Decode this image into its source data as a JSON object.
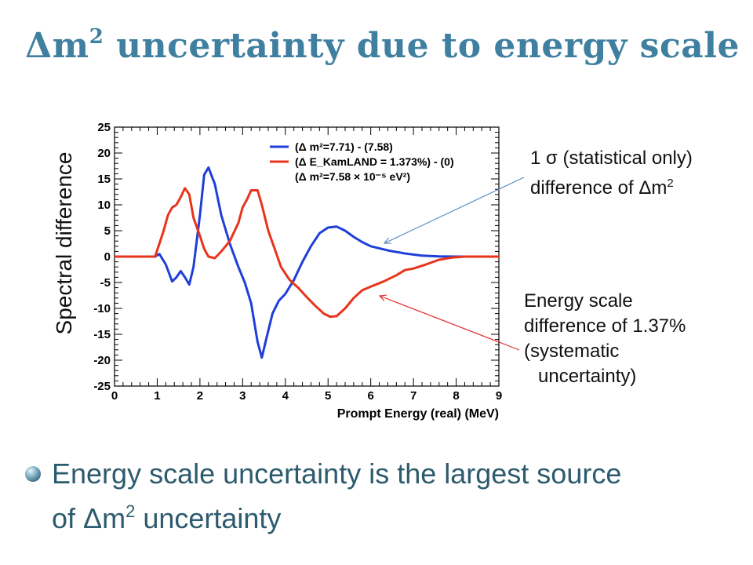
{
  "slide": {
    "title_main": "Δm",
    "title_sup": "2",
    "title_rest": " uncertainty due to energy scale",
    "ylabel": "Spectral difference"
  },
  "annotations": {
    "blue_note": {
      "line1": "1 σ (statistical only)",
      "line2_text": "difference of Δm",
      "line2_sup": "2",
      "color": "#5a8fc8"
    },
    "red_note": {
      "line1": "Energy scale",
      "line2": "difference of 1.37%",
      "line3": "(systematic",
      "line4": "uncertainty)",
      "color": "#e03030"
    }
  },
  "bullet": {
    "text_line1": "Energy scale uncertainty is the largest source",
    "text_line2_prefix": "of Δm",
    "text_line2_sup": "2",
    "text_line2_suffix": " uncertainty"
  },
  "chart_data": {
    "type": "line",
    "xlabel": "Prompt Energy (real) (MeV)",
    "ylabel": "",
    "xlim": [
      0,
      9
    ],
    "ylim": [
      -25,
      25
    ],
    "x_ticks": [
      0,
      1,
      2,
      3,
      4,
      5,
      6,
      7,
      8,
      9
    ],
    "y_ticks": [
      25,
      20,
      15,
      10,
      5,
      0,
      -5,
      -10,
      -15,
      -20,
      -25
    ],
    "grid": false,
    "legend_position": "top-right",
    "legend": [
      {
        "text": "(Δ m²=7.71) - (7.58)",
        "color": "#1f3fd8"
      },
      {
        "text": "(Δ E_KamLAND = 1.373%) - (0)",
        "color": "#e8341c"
      },
      {
        "text": "(Δ m²=7.58 × 10⁻⁵ eV²)",
        "color": null
      }
    ],
    "series": [
      {
        "name": "(Δ m²=7.71) - (7.58)",
        "color": "#1f3fd8",
        "x": [
          0,
          0.95,
          1.05,
          1.2,
          1.35,
          1.45,
          1.55,
          1.65,
          1.75,
          1.85,
          2.0,
          2.1,
          2.2,
          2.35,
          2.5,
          2.7,
          2.9,
          3.05,
          3.2,
          3.35,
          3.45,
          3.55,
          3.7,
          3.85,
          4.0,
          4.2,
          4.4,
          4.6,
          4.8,
          5.0,
          5.2,
          5.4,
          5.6,
          5.8,
          6.0,
          6.4,
          6.8,
          7.2,
          7.6,
          8.0,
          9.0
        ],
        "y": [
          0,
          0,
          0.5,
          -1.5,
          -4.8,
          -4.0,
          -2.8,
          -4.0,
          -5.4,
          -2.0,
          8.0,
          15.8,
          17.2,
          14.0,
          8.0,
          2.5,
          -2.0,
          -5.0,
          -9.0,
          -16.5,
          -19.5,
          -16.0,
          -11.0,
          -8.5,
          -7.2,
          -4.5,
          -1.0,
          2.0,
          4.5,
          5.6,
          5.8,
          5.0,
          3.8,
          2.8,
          2.0,
          1.2,
          0.6,
          0.2,
          0.05,
          0,
          0
        ]
      },
      {
        "name": "(Δ E_KamLAND = 1.373%) - (0)",
        "color": "#e8341c",
        "x": [
          0,
          0.95,
          1.05,
          1.15,
          1.25,
          1.35,
          1.45,
          1.55,
          1.65,
          1.75,
          1.85,
          2.0,
          2.1,
          2.2,
          2.35,
          2.5,
          2.7,
          2.9,
          3.0,
          3.1,
          3.2,
          3.35,
          3.45,
          3.6,
          3.75,
          3.9,
          4.1,
          4.3,
          4.5,
          4.7,
          4.9,
          5.05,
          5.2,
          5.4,
          5.6,
          5.8,
          6.0,
          6.3,
          6.6,
          6.8,
          7.0,
          7.3,
          7.6,
          7.9,
          8.2,
          9.0
        ],
        "y": [
          0,
          0,
          2.5,
          5.0,
          8.0,
          9.5,
          10.0,
          11.5,
          13.2,
          12.0,
          7.5,
          4.0,
          1.5,
          0,
          -0.3,
          1.0,
          3.0,
          6.5,
          9.5,
          11.0,
          12.8,
          12.8,
          10.0,
          5.0,
          1.5,
          -2.0,
          -4.5,
          -6.0,
          -7.8,
          -9.5,
          -11.0,
          -11.6,
          -11.5,
          -10.0,
          -8.0,
          -6.5,
          -5.8,
          -4.8,
          -3.6,
          -2.6,
          -2.3,
          -1.5,
          -0.6,
          -0.2,
          0,
          0
        ]
      }
    ]
  }
}
